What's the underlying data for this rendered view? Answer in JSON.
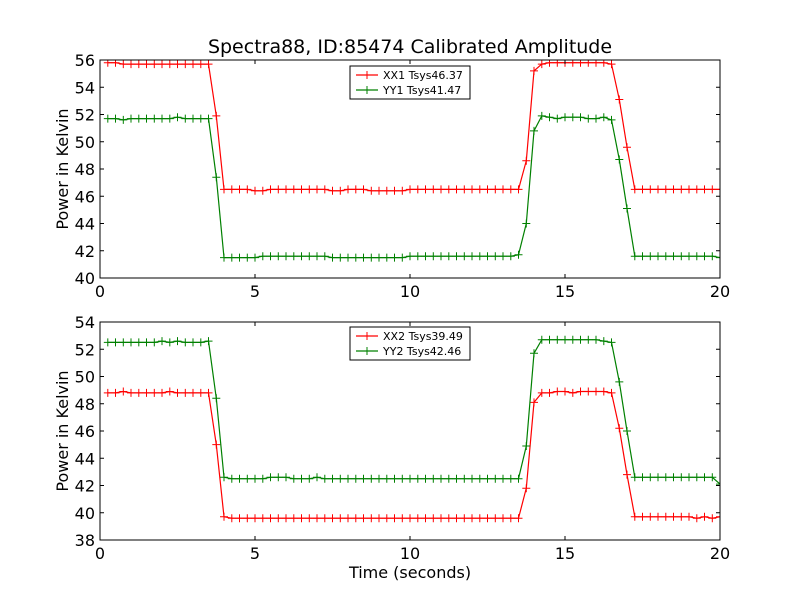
{
  "title": "Spectra88, ID:85474 Calibrated Amplitude",
  "xlabel": "Time (seconds)",
  "chart_data": [
    {
      "type": "line",
      "title": "Spectra88, ID:85474 Calibrated Amplitude",
      "xlabel": "",
      "ylabel": "Power in Kelvin",
      "xlim": [
        0,
        20
      ],
      "ylim": [
        40,
        56
      ],
      "xticks": [
        0,
        5,
        10,
        15,
        20
      ],
      "yticks": [
        40,
        42,
        44,
        46,
        48,
        50,
        52,
        54,
        56
      ],
      "legend_position": "top-center",
      "x": [
        0.25,
        0.5,
        0.75,
        1.0,
        1.25,
        1.5,
        1.75,
        2.0,
        2.25,
        2.5,
        2.75,
        3.0,
        3.25,
        3.5,
        3.75,
        4.0,
        4.25,
        4.5,
        4.75,
        5.0,
        5.25,
        5.5,
        5.75,
        6.0,
        6.25,
        6.5,
        6.75,
        7.0,
        7.25,
        7.5,
        7.75,
        8.0,
        8.25,
        8.5,
        8.75,
        9.0,
        9.25,
        9.5,
        9.75,
        10.0,
        10.25,
        10.5,
        10.75,
        11.0,
        11.25,
        11.5,
        11.75,
        12.0,
        12.25,
        12.5,
        12.75,
        13.0,
        13.25,
        13.5,
        13.75,
        14.0,
        14.25,
        14.5,
        14.75,
        15.0,
        15.25,
        15.5,
        15.75,
        16.0,
        16.25,
        16.5,
        16.75,
        17.0,
        17.25,
        17.5,
        17.75,
        18.0,
        18.25,
        18.5,
        18.75,
        19.0,
        19.25,
        19.5,
        19.75,
        20.0
      ],
      "series": [
        {
          "name": "XX1 Tsys46.37",
          "color": "#ff0000",
          "values": [
            55.8,
            55.8,
            55.7,
            55.7,
            55.7,
            55.7,
            55.7,
            55.7,
            55.7,
            55.7,
            55.7,
            55.7,
            55.7,
            55.7,
            51.9,
            46.5,
            46.5,
            46.5,
            46.5,
            46.4,
            46.4,
            46.5,
            46.5,
            46.5,
            46.5,
            46.5,
            46.5,
            46.5,
            46.5,
            46.4,
            46.4,
            46.5,
            46.5,
            46.5,
            46.4,
            46.4,
            46.4,
            46.4,
            46.4,
            46.5,
            46.5,
            46.5,
            46.5,
            46.5,
            46.5,
            46.5,
            46.5,
            46.5,
            46.5,
            46.5,
            46.5,
            46.5,
            46.5,
            46.5,
            48.6,
            55.2,
            55.7,
            55.8,
            55.8,
            55.8,
            55.8,
            55.8,
            55.8,
            55.8,
            55.8,
            55.7,
            53.1,
            49.6,
            46.5,
            46.5,
            46.5,
            46.5,
            46.5,
            46.5,
            46.5,
            46.5,
            46.5,
            46.5,
            46.5,
            46.5
          ]
        },
        {
          "name": "YY1 Tsys41.47",
          "color": "#008000",
          "values": [
            51.7,
            51.7,
            51.6,
            51.7,
            51.7,
            51.7,
            51.7,
            51.7,
            51.7,
            51.8,
            51.7,
            51.7,
            51.7,
            51.7,
            47.4,
            41.5,
            41.5,
            41.5,
            41.5,
            41.5,
            41.6,
            41.6,
            41.6,
            41.6,
            41.6,
            41.6,
            41.6,
            41.6,
            41.6,
            41.5,
            41.5,
            41.5,
            41.5,
            41.5,
            41.5,
            41.5,
            41.5,
            41.5,
            41.5,
            41.6,
            41.6,
            41.6,
            41.6,
            41.6,
            41.6,
            41.6,
            41.6,
            41.6,
            41.6,
            41.6,
            41.6,
            41.6,
            41.6,
            41.7,
            44.0,
            50.8,
            51.9,
            51.8,
            51.7,
            51.8,
            51.8,
            51.8,
            51.7,
            51.7,
            51.8,
            51.6,
            48.7,
            45.1,
            41.6,
            41.6,
            41.6,
            41.6,
            41.6,
            41.6,
            41.6,
            41.6,
            41.6,
            41.6,
            41.6,
            41.5
          ]
        }
      ]
    },
    {
      "type": "line",
      "title": "",
      "xlabel": "Time (seconds)",
      "ylabel": "Power in Kelvin",
      "xlim": [
        0,
        20
      ],
      "ylim": [
        38,
        54
      ],
      "xticks": [
        0,
        5,
        10,
        15,
        20
      ],
      "yticks": [
        38,
        40,
        42,
        44,
        46,
        48,
        50,
        52,
        54
      ],
      "legend_position": "top-center",
      "x": [
        0.25,
        0.5,
        0.75,
        1.0,
        1.25,
        1.5,
        1.75,
        2.0,
        2.25,
        2.5,
        2.75,
        3.0,
        3.25,
        3.5,
        3.75,
        4.0,
        4.25,
        4.5,
        4.75,
        5.0,
        5.25,
        5.5,
        5.75,
        6.0,
        6.25,
        6.5,
        6.75,
        7.0,
        7.25,
        7.5,
        7.75,
        8.0,
        8.25,
        8.5,
        8.75,
        9.0,
        9.25,
        9.5,
        9.75,
        10.0,
        10.25,
        10.5,
        10.75,
        11.0,
        11.25,
        11.5,
        11.75,
        12.0,
        12.25,
        12.5,
        12.75,
        13.0,
        13.25,
        13.5,
        13.75,
        14.0,
        14.25,
        14.5,
        14.75,
        15.0,
        15.25,
        15.5,
        15.75,
        16.0,
        16.25,
        16.5,
        16.75,
        17.0,
        17.25,
        17.5,
        17.75,
        18.0,
        18.25,
        18.5,
        18.75,
        19.0,
        19.25,
        19.5,
        19.75,
        20.0
      ],
      "series": [
        {
          "name": "XX2 Tsys39.49",
          "color": "#ff0000",
          "values": [
            48.8,
            48.8,
            48.9,
            48.8,
            48.8,
            48.8,
            48.8,
            48.8,
            48.9,
            48.8,
            48.8,
            48.8,
            48.8,
            48.8,
            45.0,
            39.7,
            39.6,
            39.6,
            39.6,
            39.6,
            39.6,
            39.6,
            39.6,
            39.6,
            39.6,
            39.6,
            39.6,
            39.6,
            39.6,
            39.6,
            39.6,
            39.6,
            39.6,
            39.6,
            39.6,
            39.6,
            39.6,
            39.6,
            39.6,
            39.6,
            39.6,
            39.6,
            39.6,
            39.6,
            39.6,
            39.6,
            39.6,
            39.6,
            39.6,
            39.6,
            39.6,
            39.6,
            39.6,
            39.6,
            41.8,
            48.1,
            48.8,
            48.8,
            48.9,
            48.9,
            48.8,
            48.9,
            48.9,
            48.9,
            48.9,
            48.8,
            46.2,
            42.8,
            39.7,
            39.7,
            39.7,
            39.7,
            39.7,
            39.7,
            39.7,
            39.7,
            39.6,
            39.7,
            39.6,
            39.7
          ]
        },
        {
          "name": "YY2 Tsys42.46",
          "color": "#008000",
          "values": [
            52.5,
            52.5,
            52.5,
            52.5,
            52.5,
            52.5,
            52.5,
            52.6,
            52.5,
            52.6,
            52.5,
            52.5,
            52.5,
            52.6,
            48.4,
            42.6,
            42.5,
            42.5,
            42.5,
            42.5,
            42.5,
            42.6,
            42.6,
            42.6,
            42.5,
            42.5,
            42.5,
            42.6,
            42.5,
            42.5,
            42.5,
            42.5,
            42.5,
            42.5,
            42.5,
            42.5,
            42.5,
            42.5,
            42.5,
            42.5,
            42.5,
            42.5,
            42.5,
            42.5,
            42.5,
            42.5,
            42.5,
            42.5,
            42.5,
            42.5,
            42.5,
            42.5,
            42.5,
            42.5,
            44.9,
            51.7,
            52.7,
            52.7,
            52.7,
            52.7,
            52.7,
            52.7,
            52.7,
            52.7,
            52.6,
            52.5,
            49.6,
            46.0,
            42.6,
            42.6,
            42.6,
            42.6,
            42.6,
            42.6,
            42.6,
            42.6,
            42.6,
            42.6,
            42.6,
            42.1
          ]
        }
      ]
    }
  ]
}
